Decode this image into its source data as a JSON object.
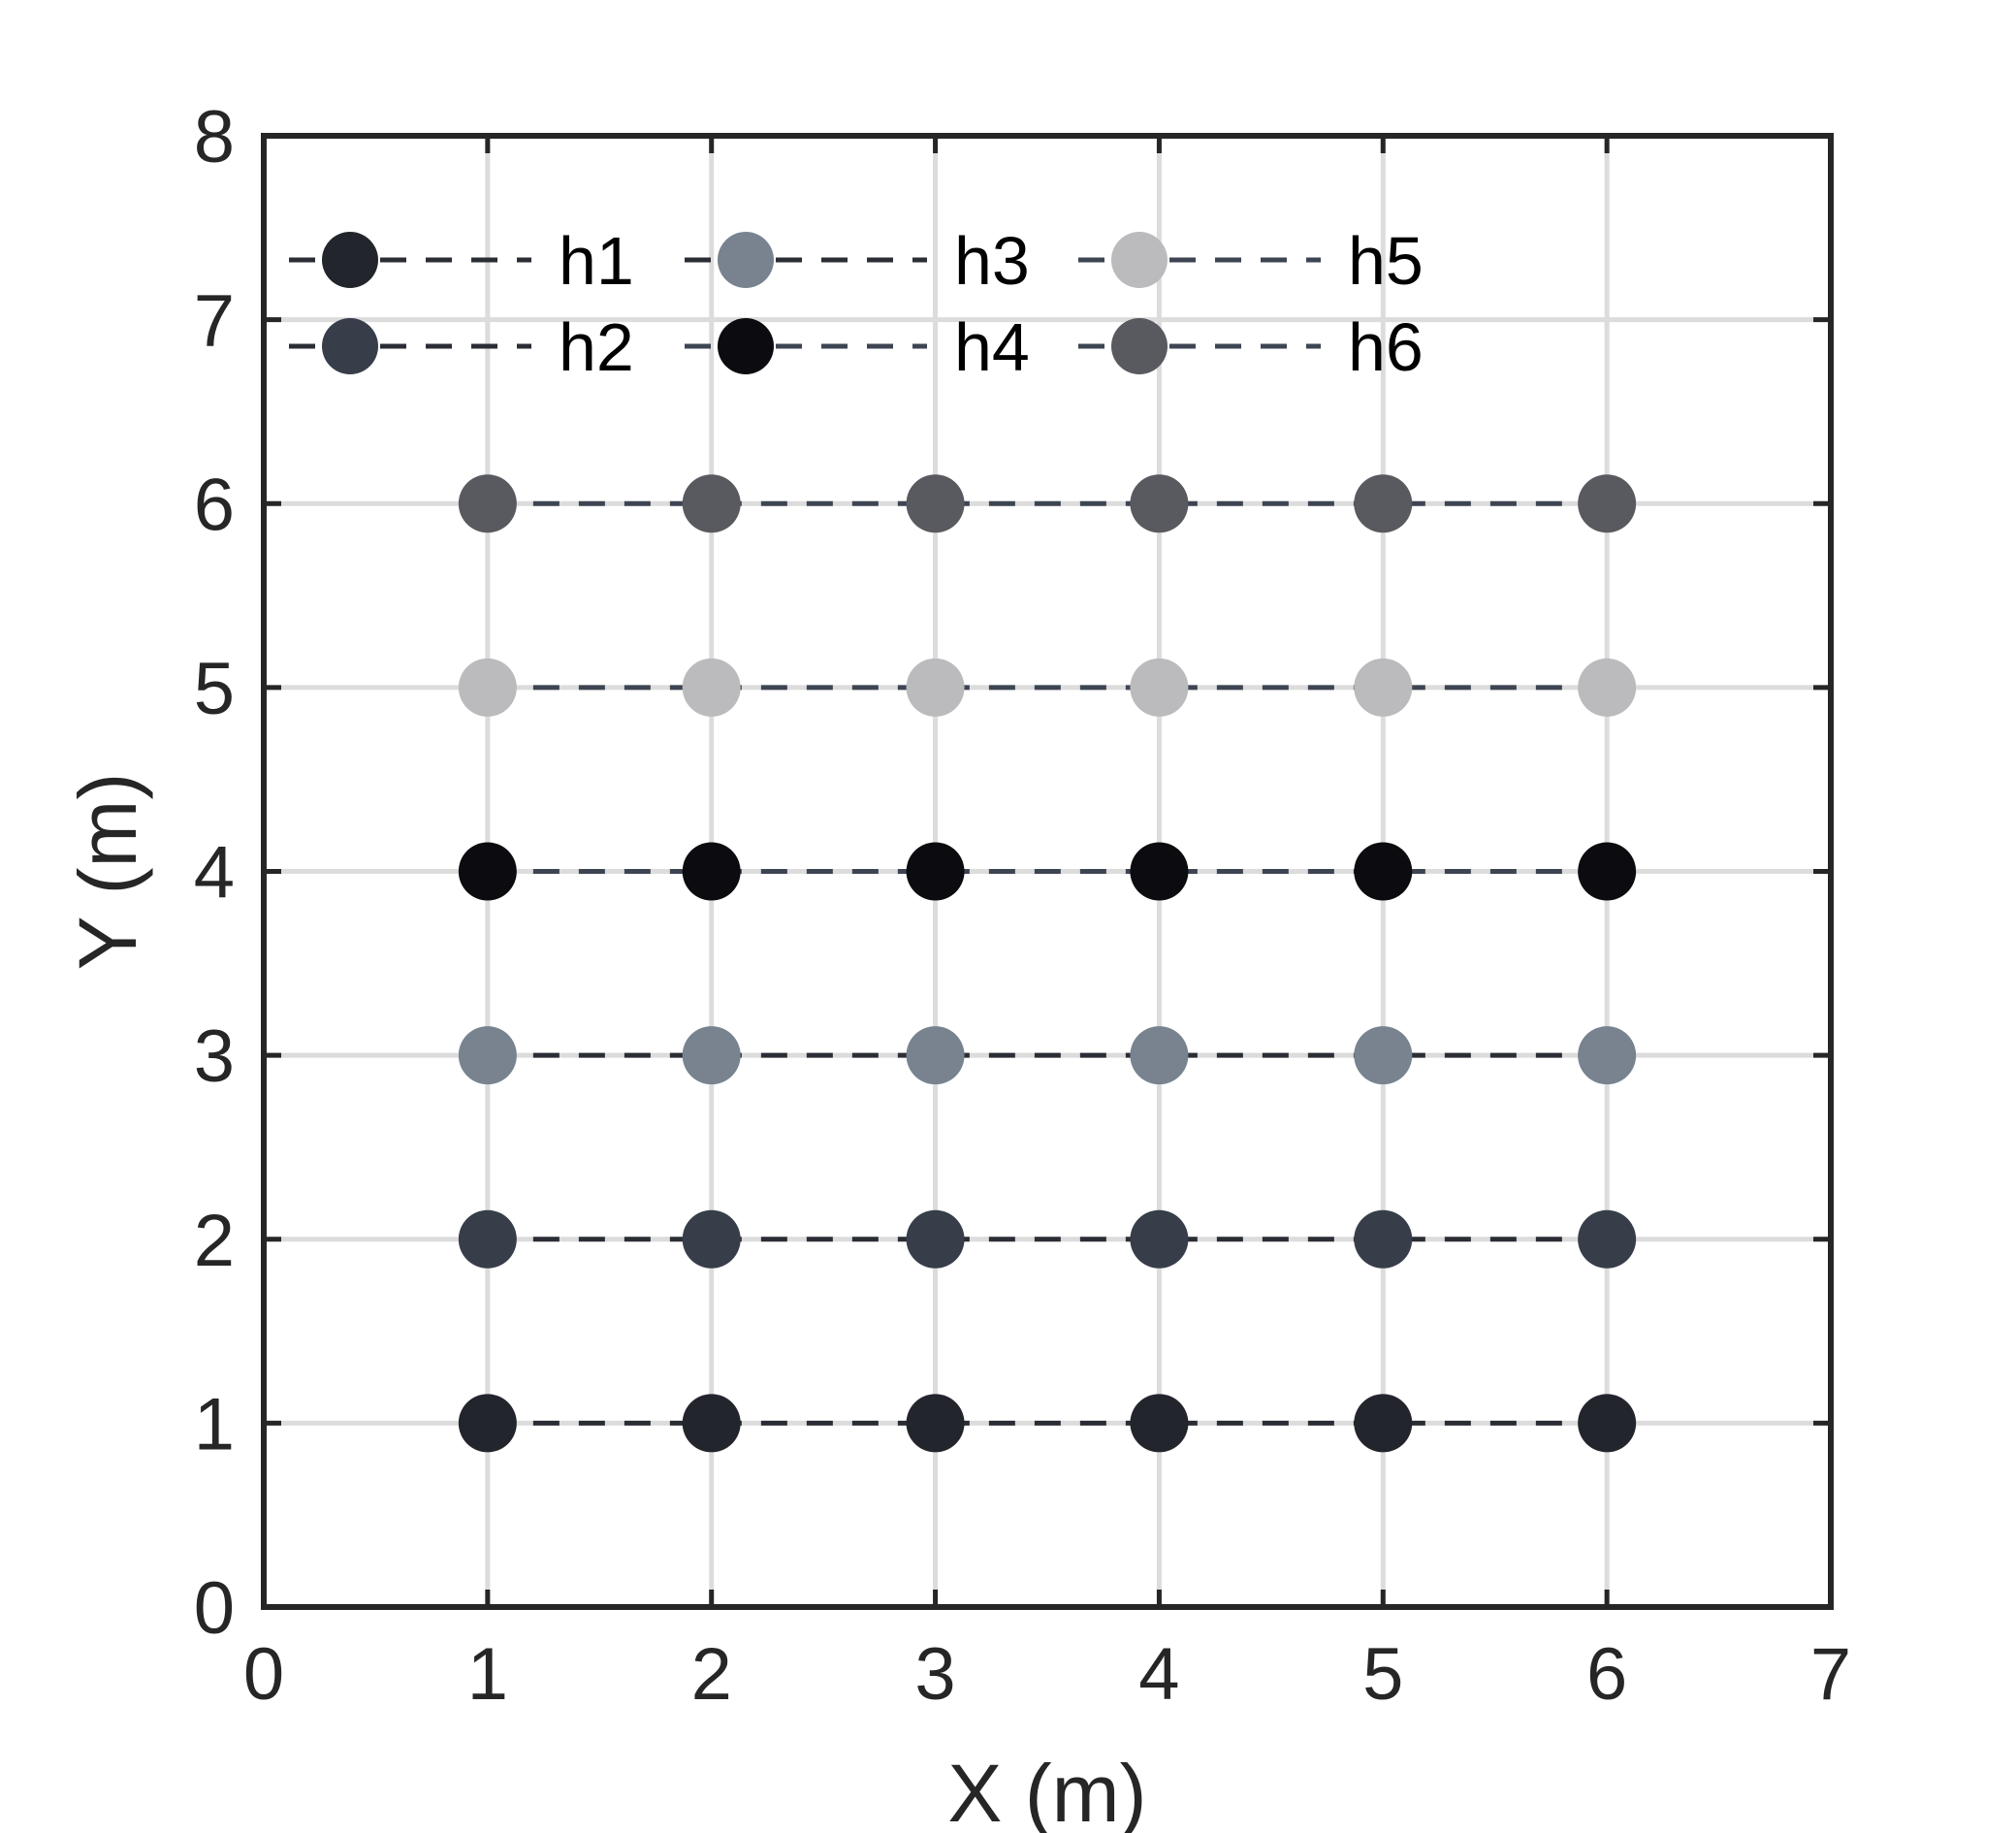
{
  "chart_data": {
    "type": "line",
    "title": "",
    "xlabel": "X (m)",
    "ylabel": "Y (m)",
    "xlim": [
      0,
      7
    ],
    "ylim": [
      0,
      8
    ],
    "xticks": [
      "0",
      "1",
      "2",
      "3",
      "4",
      "5",
      "6",
      "7"
    ],
    "yticks": [
      "0",
      "1",
      "2",
      "3",
      "4",
      "5",
      "6",
      "7",
      "8"
    ],
    "grid": true,
    "line_style": "dashed",
    "legend": {
      "placement": "top-left",
      "columns": 3
    },
    "x": [
      1,
      2,
      3,
      4,
      5,
      6
    ],
    "series": [
      {
        "name": "h1",
        "values": [
          1,
          1,
          1,
          1,
          1,
          1
        ],
        "marker_color": "#23252d",
        "line_color": "#2b2d35"
      },
      {
        "name": "h2",
        "values": [
          2,
          2,
          2,
          2,
          2,
          2
        ],
        "marker_color": "#373e4a",
        "line_color": "#2b2d35"
      },
      {
        "name": "h3",
        "values": [
          3,
          3,
          3,
          3,
          3,
          3
        ],
        "marker_color": "#78838f",
        "line_color": "#2b2d35"
      },
      {
        "name": "h4",
        "values": [
          4,
          4,
          4,
          4,
          4,
          4
        ],
        "marker_color": "#0c0b10",
        "line_color": "#3d4452"
      },
      {
        "name": "h5",
        "values": [
          5,
          5,
          5,
          5,
          5,
          5
        ],
        "marker_color": "#bbbbbd",
        "line_color": "#3d4452"
      },
      {
        "name": "h6",
        "values": [
          6,
          6,
          6,
          6,
          6,
          6
        ],
        "marker_color": "#595960",
        "line_color": "#3d4452"
      }
    ]
  }
}
